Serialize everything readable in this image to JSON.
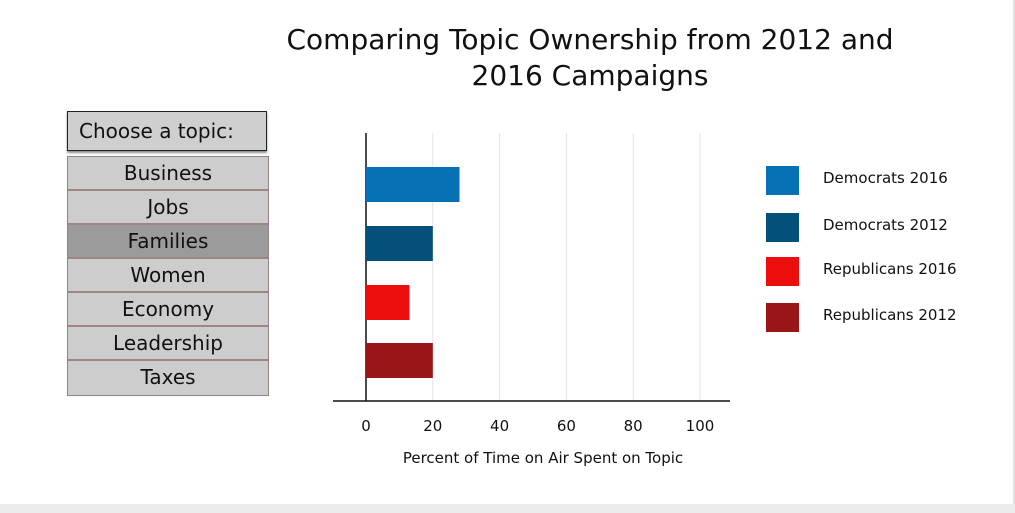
{
  "chart_data": {
    "type": "bar",
    "title": "Comparing Topic Ownership from 2012 and 2016 Campaigns",
    "xlabel": "Percent of Time on Air Spent on Topic",
    "ylabel": "",
    "orientation": "horizontal",
    "xlim": [
      0,
      100
    ],
    "xticks": [
      "0",
      "20",
      "40",
      "60",
      "80",
      "100"
    ],
    "grid": true,
    "legend_position": "right",
    "series": [
      {
        "name": "Democrats 2016",
        "value": 28,
        "color": "#0672b5"
      },
      {
        "name": "Democrats 2012",
        "value": 20,
        "color": "#05507a"
      },
      {
        "name": "Republicans 2016",
        "value": 13,
        "color": "#ee0d0d"
      },
      {
        "name": "Republicans 2012",
        "value": 20,
        "color": "#991517"
      }
    ]
  },
  "menu": {
    "header": "Choose a topic:",
    "items": [
      {
        "label": "Business"
      },
      {
        "label": "Jobs"
      },
      {
        "label": "Families",
        "selected": true
      },
      {
        "label": "Women"
      },
      {
        "label": "Economy"
      },
      {
        "label": "Leadership"
      },
      {
        "label": "Taxes"
      }
    ]
  }
}
